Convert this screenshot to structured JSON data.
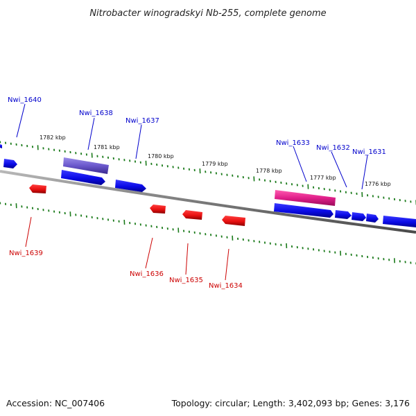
{
  "title": "Nitrobacter winogradskyi Nb-255, complete genome",
  "footer": {
    "accession": "Accession: NC_007406",
    "summary": "Topology: circular; Length: 3,402,093 bp; Genes: 3,176"
  },
  "colors": {
    "forward_gene": "#1010e0",
    "reverse_gene": "#e01010",
    "highlight_purple": "#6a5acd",
    "highlight_pink": "#e0208a",
    "tick": "#1a7a1a",
    "backbone": "#7a7a7a"
  },
  "kbp_labels": [
    "1782 kbp",
    "1781 kbp",
    "1780 kbp",
    "1779 kbp",
    "1778 kbp",
    "1777 kbp",
    "1776 kbp"
  ],
  "genes_forward": [
    "Nwi_1640",
    "Nwi_1638",
    "Nwi_1637",
    "Nwi_1633",
    "Nwi_1632",
    "Nwi_1631"
  ],
  "genes_reverse": [
    "Nwi_1639",
    "Nwi_1636",
    "Nwi_1635",
    "Nwi_1634"
  ]
}
